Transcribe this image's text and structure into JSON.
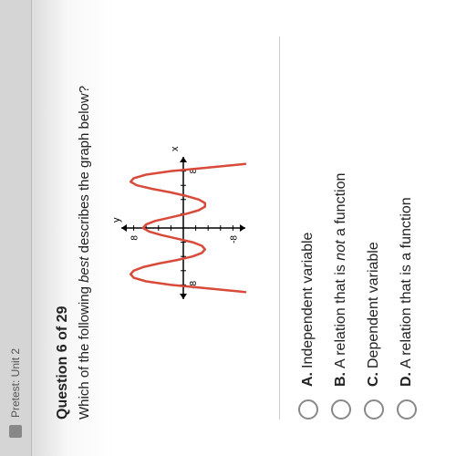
{
  "tab": {
    "label": "Pretest: Unit 2"
  },
  "question": {
    "number": "Question 6 of 29",
    "prompt_pre": "Which of the following ",
    "prompt_em": "best",
    "prompt_post": " describes the graph below?"
  },
  "graph": {
    "type": "line",
    "x_label": "x",
    "y_label": "y",
    "xlim": [
      -10,
      10
    ],
    "ylim": [
      -10,
      10
    ],
    "tick_labels": {
      "x_pos": "8",
      "x_neg": "-8",
      "y_pos": "8",
      "y_neg": "-8"
    },
    "axis_color": "#000000",
    "tick_color": "#000000",
    "curve_color": "#d84a3a",
    "curve_width": 2.5,
    "background_color": "#ffffff",
    "curve_points": [
      [
        -9,
        -10
      ],
      [
        -8.5,
        -4
      ],
      [
        -8,
        2
      ],
      [
        -7.5,
        6
      ],
      [
        -7,
        8
      ],
      [
        -6.5,
        8.5
      ],
      [
        -6,
        8
      ],
      [
        -5.5,
        6.5
      ],
      [
        -5,
        4
      ],
      [
        -4.5,
        1
      ],
      [
        -4,
        -1.5
      ],
      [
        -3.5,
        -3
      ],
      [
        -3,
        -3.5
      ],
      [
        -2.5,
        -3
      ],
      [
        -2,
        -1.5
      ],
      [
        -1.5,
        1
      ],
      [
        -1,
        3.5
      ],
      [
        -0.5,
        5.5
      ],
      [
        0,
        6.5
      ],
      [
        0.5,
        6
      ],
      [
        1,
        4.5
      ],
      [
        1.5,
        2
      ],
      [
        2,
        -0.5
      ],
      [
        2.5,
        -2.5
      ],
      [
        3,
        -3.5
      ],
      [
        3.5,
        -3.5
      ],
      [
        4,
        -2.5
      ],
      [
        4.5,
        -0.5
      ],
      [
        5,
        2
      ],
      [
        5.5,
        5
      ],
      [
        6,
        7.5
      ],
      [
        6.5,
        8.5
      ],
      [
        7,
        8
      ],
      [
        7.5,
        6
      ],
      [
        8,
        2
      ],
      [
        8.5,
        -4
      ],
      [
        9,
        -10
      ]
    ]
  },
  "choices": [
    {
      "letter": "A.",
      "text_plain": "Independent variable",
      "italic_word": ""
    },
    {
      "letter": "B.",
      "text_plain": "A relation that is ",
      "italic_word": "not",
      "text_after": " a function"
    },
    {
      "letter": "C.",
      "text_plain": "Dependent variable",
      "italic_word": ""
    },
    {
      "letter": "D.",
      "text_plain": "A relation that is a function",
      "italic_word": ""
    }
  ]
}
